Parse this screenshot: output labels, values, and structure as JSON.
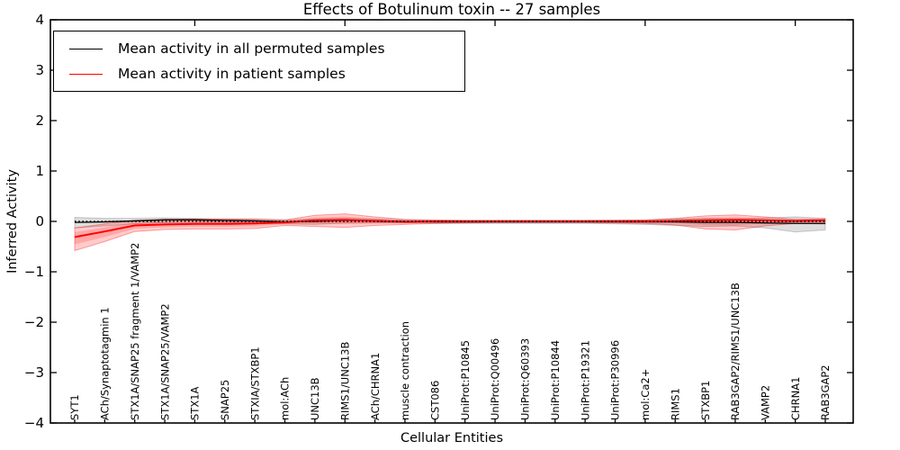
{
  "figure": {
    "background": "#ffffff"
  },
  "chart_data": {
    "type": "line",
    "title": "Effects of Botulinum toxin -- 27 samples",
    "xlabel": "Cellular Entities",
    "ylabel": "Inferred Activity",
    "ylim": [
      -4,
      4
    ],
    "yticks": [
      4,
      3,
      2,
      1,
      0,
      -1,
      -2,
      -3,
      -4
    ],
    "yticklabels": [
      "4",
      "3",
      "2",
      "1",
      "0",
      "−1",
      "−2",
      "−3",
      "−4"
    ],
    "grid": false,
    "legend_position": "upper-left",
    "zero_line_style": "dotted",
    "top_ticks_at_indices": [
      4,
      9,
      14,
      19,
      24
    ],
    "categories": [
      "SYT1",
      "ACh/Synaptotagmin 1",
      "STX1A/SNAP25 fragment 1/VAMP2",
      "STX1A/SNAP25/VAMP2",
      "STX1A",
      "SNAP25",
      "STXIA/STXBP1",
      "mol:ACh",
      "UNC13B",
      "RIMS1/UNC13B",
      "ACh/CHRNA1",
      "muscle contraction",
      "CST086",
      "UniProt:P10845",
      "UniProt:Q00496",
      "UniProt:Q60393",
      "UniProt:P10844",
      "UniProt:P19321",
      "UniProt:P30996",
      "mol:Ca2+",
      "RIMS1",
      "STXBP1",
      "RAB3GAP2/RIMS1/UNC13B",
      "VAMP2",
      "CHRNA1",
      "RAB3GAP2"
    ],
    "series": [
      {
        "name": "Mean activity in all permuted samples",
        "color": "#000000",
        "band_fill_opacity": 0.13,
        "values": [
          -0.02,
          -0.01,
          0.01,
          0.03,
          0.03,
          0.02,
          0.01,
          -0.01,
          0,
          0.02,
          0.01,
          0,
          -0.01,
          -0.01,
          -0.01,
          -0.01,
          -0.01,
          -0.01,
          -0.01,
          -0.01,
          -0.01,
          -0.02,
          -0.02,
          -0.03,
          -0.04,
          -0.04
        ],
        "band_upper": [
          0.08,
          0.06,
          0.06,
          0.07,
          0.06,
          0.05,
          0.04,
          0.03,
          0.05,
          0.06,
          0.05,
          0.03,
          0.02,
          0.02,
          0.02,
          0.02,
          0.02,
          0.02,
          0.03,
          0.03,
          0.05,
          0.06,
          0.05,
          0.07,
          0.09,
          0.06
        ],
        "band_lower": [
          -0.13,
          -0.09,
          -0.05,
          -0.02,
          -0.01,
          -0.02,
          -0.03,
          -0.05,
          -0.06,
          -0.03,
          -0.03,
          -0.03,
          -0.04,
          -0.04,
          -0.04,
          -0.04,
          -0.04,
          -0.04,
          -0.05,
          -0.06,
          -0.08,
          -0.1,
          -0.09,
          -0.13,
          -0.21,
          -0.17
        ]
      },
      {
        "name": "Mean activity in patient samples",
        "color": "#ff0000",
        "band_fill_opacity": 0.2,
        "values": [
          -0.31,
          -0.2,
          -0.08,
          -0.06,
          -0.05,
          -0.05,
          -0.04,
          -0.02,
          0.02,
          0.03,
          0.01,
          -0.01,
          0,
          0,
          0,
          0,
          0,
          0,
          0,
          0,
          0.01,
          0.02,
          0.03,
          0.02,
          0.01,
          0.02
        ],
        "band_upper": [
          -0.13,
          -0.05,
          0.02,
          0.04,
          0.05,
          0.05,
          0.05,
          0.03,
          0.12,
          0.15,
          0.09,
          0.04,
          0.03,
          0.02,
          0.02,
          0.02,
          0.02,
          0.02,
          0.02,
          0.03,
          0.06,
          0.11,
          0.13,
          0.09,
          0.04,
          0.05
        ],
        "band_lower": [
          -0.58,
          -0.4,
          -0.2,
          -0.16,
          -0.15,
          -0.15,
          -0.14,
          -0.08,
          -0.1,
          -0.12,
          -0.08,
          -0.06,
          -0.04,
          -0.03,
          -0.02,
          -0.02,
          -0.02,
          -0.02,
          -0.03,
          -0.04,
          -0.07,
          -0.15,
          -0.17,
          -0.09,
          -0.04,
          -0.05
        ]
      }
    ]
  }
}
